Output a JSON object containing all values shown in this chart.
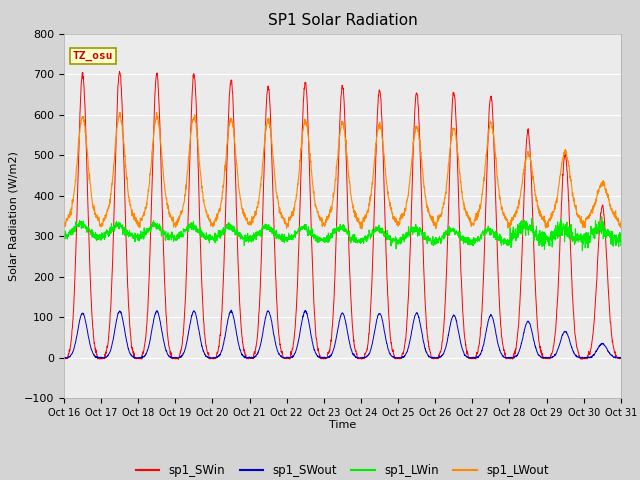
{
  "title": "SP1 Solar Radiation",
  "ylabel": "Solar Radiation (W/m2)",
  "xlabel": "Time",
  "ylim": [
    -100,
    800
  ],
  "bg_color": "#e0e0e0",
  "plot_bg_color": "#e8e8e8",
  "tz_label": "TZ_osu",
  "x_tick_labels": [
    "Oct 16",
    "Oct 17",
    "Oct 18",
    "Oct 19",
    "Oct 20",
    "Oct 21",
    "Oct 22",
    "Oct 23",
    "Oct 24",
    "Oct 25",
    "Oct 26",
    "Oct 27",
    "Oct 28",
    "Oct 29",
    "Oct 30",
    "Oct 31"
  ],
  "series_colors": {
    "sp1_SWin": "#ff0000",
    "sp1_SWout": "#0000cc",
    "sp1_LWin": "#00ee00",
    "sp1_LWout": "#ff8800"
  },
  "num_days": 15,
  "peak_SWin": [
    700,
    705,
    700,
    700,
    685,
    670,
    680,
    670,
    660,
    655,
    655,
    645,
    560,
    500,
    375
  ],
  "peak_SWout": [
    110,
    115,
    115,
    115,
    115,
    115,
    115,
    110,
    110,
    110,
    105,
    105,
    90,
    65,
    35
  ],
  "peak_LWout": [
    545,
    550,
    545,
    545,
    540,
    535,
    535,
    530,
    525,
    520,
    515,
    530,
    455,
    460,
    380
  ],
  "LWin_base": 300,
  "LWout_night": 330,
  "legend_entries": [
    "sp1_SWin",
    "sp1_SWout",
    "sp1_LWin",
    "sp1_LWout"
  ]
}
